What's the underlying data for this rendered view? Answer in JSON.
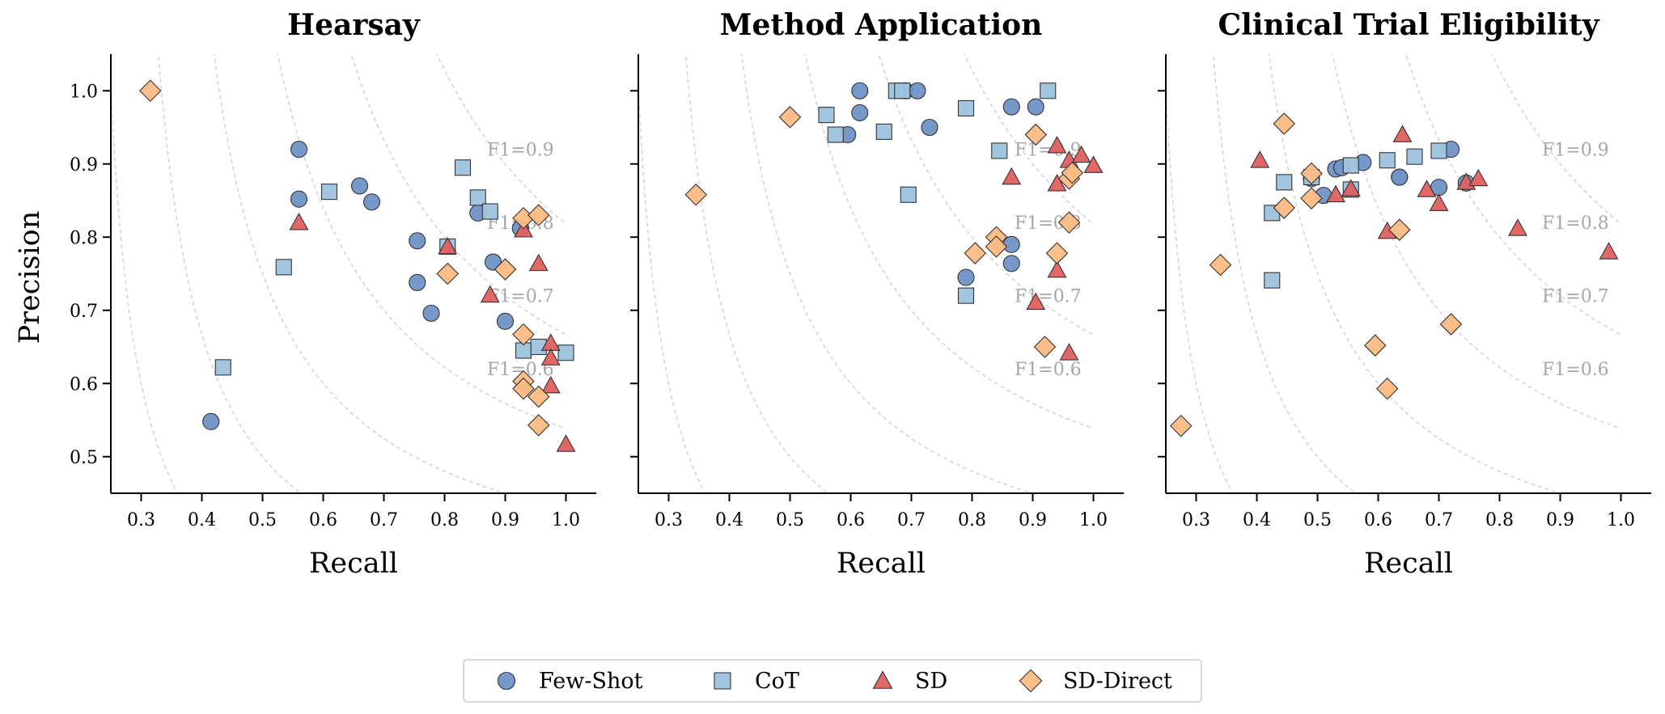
{
  "chart_data": {
    "type": "scatter",
    "xlabel": "Recall",
    "ylabel": "Precision",
    "xlim": [
      0.25,
      1.05
    ],
    "ylim": [
      0.45,
      1.05
    ],
    "xticks": [
      "0.3",
      "0.4",
      "0.5",
      "0.6",
      "0.7",
      "0.8",
      "0.9",
      "1.0"
    ],
    "yticks": [
      "0.5",
      "0.6",
      "0.7",
      "0.8",
      "0.9",
      "1.0"
    ],
    "iso_f1": [
      0.4,
      0.5,
      0.6,
      0.7,
      0.8,
      0.9
    ],
    "iso_labels": [
      {
        "f1": 0.9,
        "text": "F1=0.9"
      },
      {
        "f1": 0.8,
        "text": "F1=0.8"
      },
      {
        "f1": 0.7,
        "text": "F1=0.7"
      },
      {
        "f1": 0.6,
        "text": "F1=0.6"
      }
    ],
    "legend": [
      {
        "name": "Few-Shot",
        "marker": "circle",
        "color": "#7093c7"
      },
      {
        "name": "CoT",
        "marker": "square",
        "color": "#9dc3de"
      },
      {
        "name": "SD",
        "marker": "triangle",
        "color": "#e06060"
      },
      {
        "name": "SD-Direct",
        "marker": "diamond",
        "color": "#fdbb84"
      }
    ],
    "panels": [
      {
        "title": "Hearsay",
        "series": [
          {
            "name": "Few-Shot",
            "points": [
              [
                0.415,
                0.548
              ],
              [
                0.56,
                0.92
              ],
              [
                0.56,
                0.852
              ],
              [
                0.66,
                0.87
              ],
              [
                0.68,
                0.848
              ],
              [
                0.755,
                0.795
              ],
              [
                0.755,
                0.738
              ],
              [
                0.778,
                0.696
              ],
              [
                0.855,
                0.833
              ],
              [
                0.88,
                0.766
              ],
              [
                0.9,
                0.685
              ],
              [
                0.925,
                0.812
              ]
            ]
          },
          {
            "name": "CoT",
            "points": [
              [
                0.435,
                0.622
              ],
              [
                0.535,
                0.759
              ],
              [
                0.61,
                0.862
              ],
              [
                0.805,
                0.787
              ],
              [
                0.83,
                0.895
              ],
              [
                0.855,
                0.854
              ],
              [
                0.875,
                0.835
              ],
              [
                0.93,
                0.645
              ],
              [
                0.955,
                0.65
              ],
              [
                1.0,
                0.642
              ]
            ]
          },
          {
            "name": "SD",
            "points": [
              [
                0.56,
                0.82
              ],
              [
                0.805,
                0.787
              ],
              [
                0.875,
                0.721
              ],
              [
                0.93,
                0.81
              ],
              [
                0.955,
                0.764
              ],
              [
                0.975,
                0.655
              ],
              [
                0.975,
                0.635
              ],
              [
                0.975,
                0.597
              ],
              [
                1.0,
                0.517
              ]
            ]
          },
          {
            "name": "SD-Direct",
            "points": [
              [
                0.315,
                1.0
              ],
              [
                0.805,
                0.75
              ],
              [
                0.9,
                0.756
              ],
              [
                0.93,
                0.826
              ],
              [
                0.93,
                0.667
              ],
              [
                0.93,
                0.603
              ],
              [
                0.93,
                0.593
              ],
              [
                0.955,
                0.83
              ],
              [
                0.955,
                0.582
              ],
              [
                0.955,
                0.543
              ]
            ]
          }
        ]
      },
      {
        "title": "Method Application",
        "series": [
          {
            "name": "Few-Shot",
            "points": [
              [
                0.595,
                0.94
              ],
              [
                0.615,
                1.0
              ],
              [
                0.615,
                0.97
              ],
              [
                0.69,
                1.0
              ],
              [
                0.71,
                1.0
              ],
              [
                0.73,
                0.95
              ],
              [
                0.865,
                0.978
              ],
              [
                0.905,
                0.978
              ],
              [
                0.865,
                0.79
              ],
              [
                0.865,
                0.764
              ],
              [
                0.79,
                0.745
              ]
            ]
          },
          {
            "name": "CoT",
            "points": [
              [
                0.56,
                0.967
              ],
              [
                0.575,
                0.94
              ],
              [
                0.655,
                0.944
              ],
              [
                0.675,
                1.0
              ],
              [
                0.685,
                1.0
              ],
              [
                0.695,
                0.858
              ],
              [
                0.79,
                0.976
              ],
              [
                0.845,
                0.918
              ],
              [
                0.925,
                1.0
              ],
              [
                0.79,
                0.72
              ]
            ]
          },
          {
            "name": "SD",
            "points": [
              [
                0.865,
                0.882
              ],
              [
                0.905,
                0.711
              ],
              [
                0.94,
                0.925
              ],
              [
                0.94,
                0.873
              ],
              [
                0.94,
                0.755
              ],
              [
                0.96,
                0.905
              ],
              [
                0.96,
                0.642
              ],
              [
                0.98,
                0.912
              ],
              [
                1.0,
                0.898
              ]
            ]
          },
          {
            "name": "SD-Direct",
            "points": [
              [
                0.345,
                0.858
              ],
              [
                0.5,
                0.964
              ],
              [
                0.805,
                0.778
              ],
              [
                0.84,
                0.8
              ],
              [
                0.84,
                0.787
              ],
              [
                0.905,
                0.94
              ],
              [
                0.92,
                0.65
              ],
              [
                0.94,
                0.778
              ],
              [
                0.96,
                0.88
              ],
              [
                0.96,
                0.82
              ],
              [
                0.965,
                0.888
              ]
            ]
          }
        ]
      },
      {
        "title": "Clinical Trial Eligibility",
        "series": [
          {
            "name": "Few-Shot",
            "points": [
              [
                0.49,
                0.88
              ],
              [
                0.51,
                0.857
              ],
              [
                0.53,
                0.893
              ],
              [
                0.54,
                0.895
              ],
              [
                0.575,
                0.902
              ],
              [
                0.635,
                0.882
              ],
              [
                0.635,
                0.882
              ],
              [
                0.7,
                0.868
              ],
              [
                0.72,
                0.92
              ],
              [
                0.745,
                0.874
              ]
            ]
          },
          {
            "name": "CoT",
            "points": [
              [
                0.425,
                0.833
              ],
              [
                0.425,
                0.741
              ],
              [
                0.445,
                0.875
              ],
              [
                0.49,
                0.882
              ],
              [
                0.555,
                0.898
              ],
              [
                0.555,
                0.865
              ],
              [
                0.615,
                0.905
              ],
              [
                0.66,
                0.91
              ],
              [
                0.7,
                0.918
              ]
            ]
          },
          {
            "name": "SD",
            "points": [
              [
                0.405,
                0.905
              ],
              [
                0.53,
                0.858
              ],
              [
                0.555,
                0.866
              ],
              [
                0.615,
                0.808
              ],
              [
                0.64,
                0.94
              ],
              [
                0.68,
                0.865
              ],
              [
                0.7,
                0.846
              ],
              [
                0.745,
                0.875
              ],
              [
                0.765,
                0.88
              ],
              [
                0.83,
                0.812
              ],
              [
                0.98,
                0.78
              ]
            ]
          },
          {
            "name": "SD-Direct",
            "points": [
              [
                0.275,
                0.542
              ],
              [
                0.34,
                0.762
              ],
              [
                0.445,
                0.955
              ],
              [
                0.445,
                0.84
              ],
              [
                0.49,
                0.887
              ],
              [
                0.49,
                0.853
              ],
              [
                0.595,
                0.652
              ],
              [
                0.615,
                0.593
              ],
              [
                0.635,
                0.81
              ],
              [
                0.72,
                0.681
              ]
            ]
          }
        ]
      }
    ]
  }
}
